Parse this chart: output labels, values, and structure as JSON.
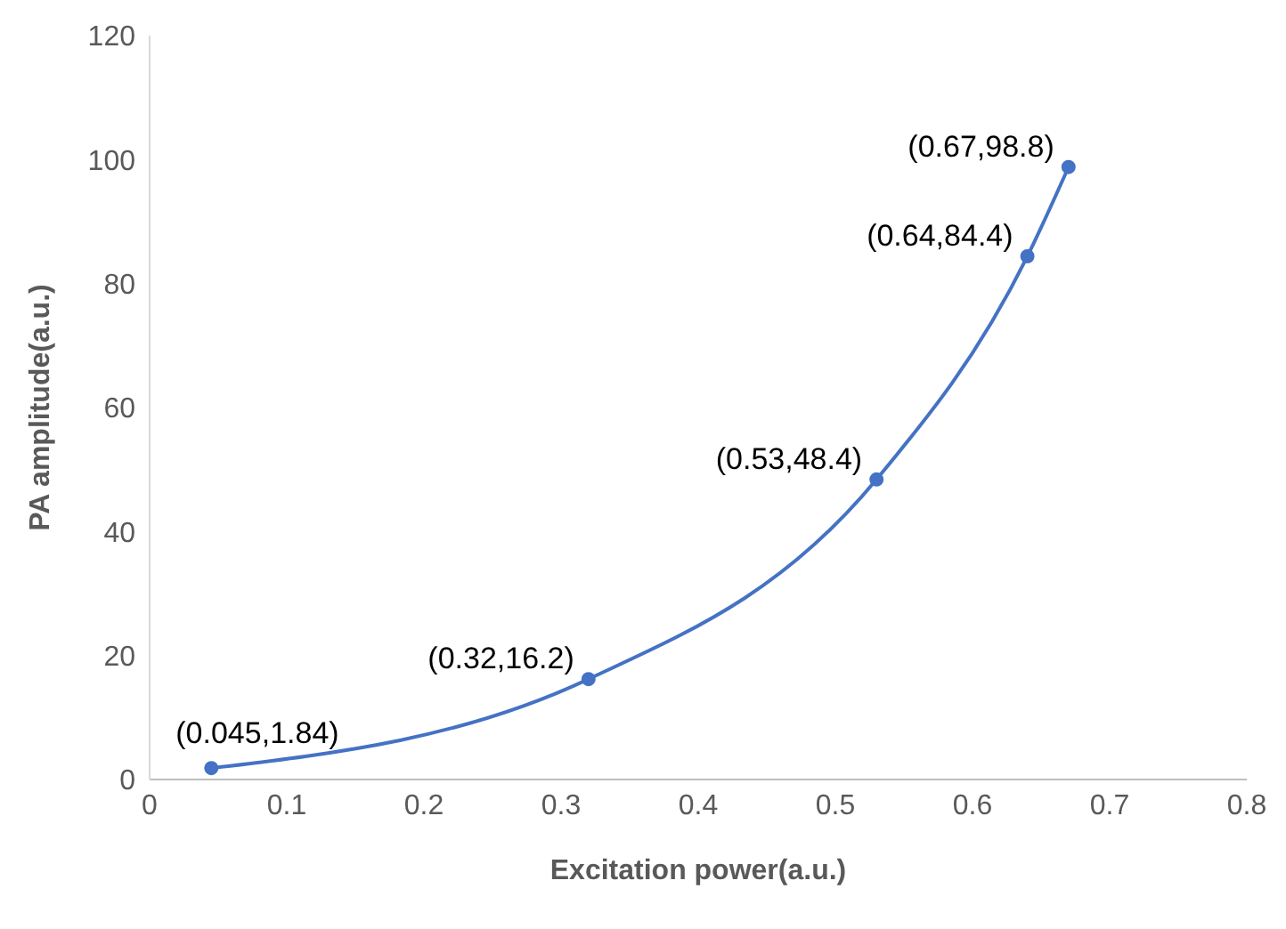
{
  "chart_data": {
    "type": "line",
    "xlabel": "Excitation power(a.u.)",
    "ylabel": "PA amplitude(a.u.)",
    "x": [
      0.045,
      0.32,
      0.53,
      0.64,
      0.67
    ],
    "series": [
      {
        "color": "#4472c4",
        "values": [
          1.84,
          16.2,
          48.4,
          84.4,
          98.8
        ],
        "value_labels": [
          "(0.045,1.84)",
          "(0.32,16.2)",
          "(0.53,48.4)",
          "(0.64,84.4)",
          "(0.67,98.8)"
        ]
      }
    ],
    "xlim": [
      0,
      0.8
    ],
    "xticks": [
      0,
      0.1,
      0.2,
      0.3,
      0.4,
      0.5,
      0.6,
      0.7,
      0.8
    ],
    "ylim": [
      0,
      120
    ],
    "yticks": [
      0,
      20,
      40,
      60,
      80,
      100,
      120
    ],
    "grid": false,
    "legend": false,
    "marker": "circle",
    "line_style": "solid"
  }
}
